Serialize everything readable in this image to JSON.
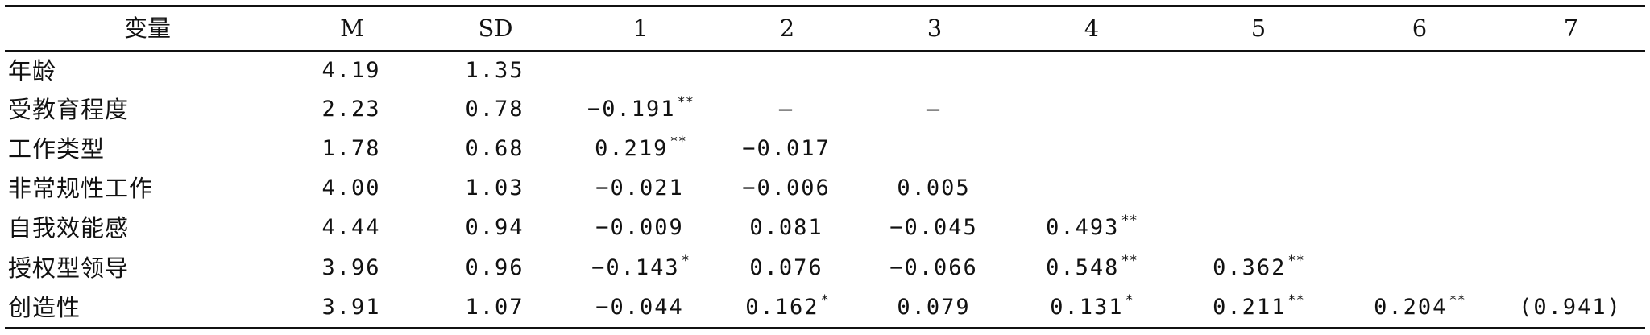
{
  "table": {
    "headers": [
      "变量",
      "M",
      "SD",
      "1",
      "2",
      "3",
      "4",
      "5",
      "6",
      "7"
    ],
    "rows": [
      {
        "label": "年龄",
        "cells": [
          [
            "4.19",
            ""
          ],
          [
            "1.35",
            ""
          ],
          [
            "",
            ""
          ],
          [
            "",
            ""
          ],
          [
            "",
            ""
          ],
          [
            "",
            ""
          ],
          [
            "",
            ""
          ],
          [
            "",
            ""
          ],
          [
            "",
            ""
          ]
        ]
      },
      {
        "label": "受教育程度",
        "cells": [
          [
            "2.23",
            ""
          ],
          [
            "0.78",
            ""
          ],
          [
            "−0.191",
            "**"
          ],
          [
            "—",
            ""
          ],
          [
            "—",
            ""
          ],
          [
            "",
            ""
          ],
          [
            "",
            ""
          ],
          [
            "",
            ""
          ],
          [
            "",
            ""
          ]
        ]
      },
      {
        "label": "工作类型",
        "cells": [
          [
            "1.78",
            ""
          ],
          [
            "0.68",
            ""
          ],
          [
            "0.219",
            "**"
          ],
          [
            "−0.017",
            ""
          ],
          [
            "",
            ""
          ],
          [
            "",
            ""
          ],
          [
            "",
            ""
          ],
          [
            "",
            ""
          ],
          [
            "",
            ""
          ]
        ]
      },
      {
        "label": "非常规性工作",
        "cells": [
          [
            "4.00",
            ""
          ],
          [
            "1.03",
            ""
          ],
          [
            "−0.021",
            ""
          ],
          [
            "−0.006",
            ""
          ],
          [
            "0.005",
            ""
          ],
          [
            "",
            ""
          ],
          [
            "",
            ""
          ],
          [
            "",
            ""
          ],
          [
            "",
            ""
          ]
        ]
      },
      {
        "label": "自我效能感",
        "cells": [
          [
            "4.44",
            ""
          ],
          [
            "0.94",
            ""
          ],
          [
            "−0.009",
            ""
          ],
          [
            "0.081",
            ""
          ],
          [
            "−0.045",
            ""
          ],
          [
            "0.493",
            "**"
          ],
          [
            "",
            ""
          ],
          [
            "",
            ""
          ],
          [
            "",
            ""
          ]
        ]
      },
      {
        "label": "授权型领导",
        "cells": [
          [
            "3.96",
            ""
          ],
          [
            "0.96",
            ""
          ],
          [
            "−0.143",
            "*"
          ],
          [
            "0.076",
            ""
          ],
          [
            "−0.066",
            ""
          ],
          [
            "0.548",
            "**"
          ],
          [
            "0.362",
            "**"
          ],
          [
            "",
            ""
          ],
          [
            "",
            ""
          ]
        ]
      },
      {
        "label": "创造性",
        "cells": [
          [
            "3.91",
            ""
          ],
          [
            "1.07",
            ""
          ],
          [
            "−0.044",
            ""
          ],
          [
            "0.162",
            "*"
          ],
          [
            "0.079",
            ""
          ],
          [
            "0.131",
            "*"
          ],
          [
            "0.211",
            "**"
          ],
          [
            "0.204",
            "**"
          ],
          [
            "(0.941)",
            ""
          ]
        ]
      }
    ]
  }
}
